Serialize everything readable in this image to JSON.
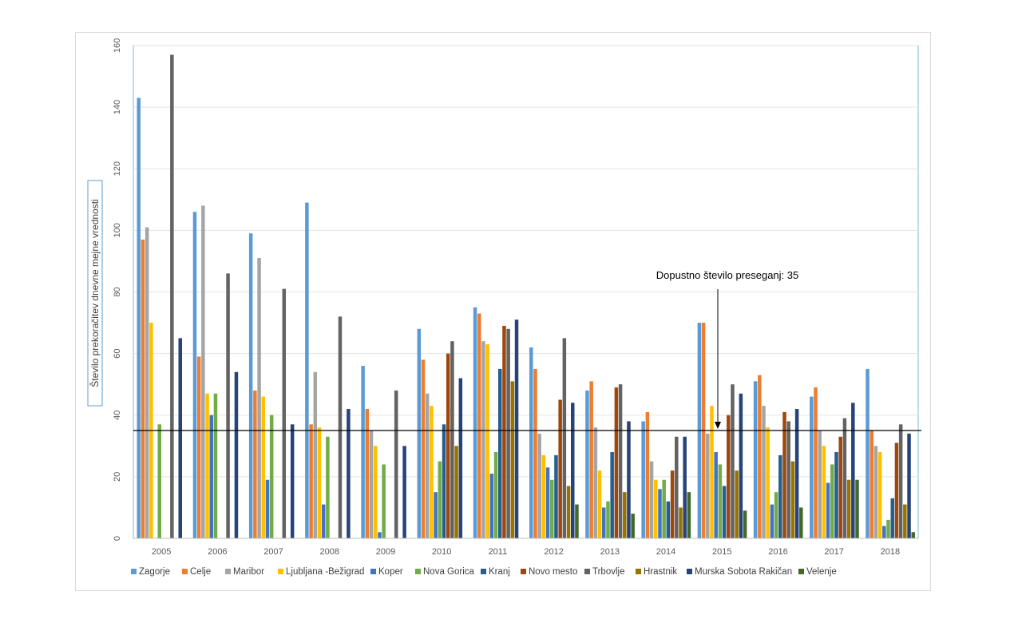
{
  "chart_data": {
    "type": "bar",
    "title": "",
    "xlabel": "",
    "ylabel": "Število prekoračitev dnevne mejne vrednosti",
    "ylim": [
      0,
      160
    ],
    "yticks": [
      0,
      20,
      40,
      60,
      80,
      100,
      120,
      140,
      160
    ],
    "grid": true,
    "legend_position": "bottom",
    "categories": [
      "2005",
      "2006",
      "2007",
      "2008",
      "2009",
      "2010",
      "2011",
      "2012",
      "2013",
      "2014",
      "2015",
      "2016",
      "2017",
      "2018"
    ],
    "reference_line": {
      "value": 35,
      "label": "Dopustno število preseganj: 35"
    },
    "series": [
      {
        "name": "Zagorje",
        "color": "#5b9bd5",
        "values": [
          143,
          106,
          99,
          109,
          56,
          68,
          75,
          62,
          48,
          38,
          70,
          51,
          46,
          55
        ]
      },
      {
        "name": "Celje",
        "color": "#ed7d31",
        "values": [
          97,
          59,
          48,
          37,
          42,
          58,
          73,
          55,
          51,
          41,
          70,
          53,
          49,
          35
        ]
      },
      {
        "name": "Maribor",
        "color": "#a5a5a5",
        "values": [
          101,
          108,
          91,
          54,
          35,
          47,
          64,
          34,
          36,
          25,
          34,
          43,
          35,
          30
        ]
      },
      {
        "name": "Ljubljana -Bežigrad",
        "color": "#ffc000",
        "values": [
          70,
          47,
          46,
          36,
          30,
          43,
          63,
          27,
          22,
          19,
          43,
          36,
          30,
          28
        ]
      },
      {
        "name": "Koper",
        "color": "#4472c4",
        "values": [
          null,
          40,
          19,
          11,
          2,
          15,
          21,
          23,
          10,
          16,
          28,
          11,
          18,
          4
        ]
      },
      {
        "name": "Nova Gorica",
        "color": "#70ad47",
        "values": [
          37,
          47,
          40,
          33,
          24,
          25,
          28,
          19,
          12,
          19,
          24,
          15,
          24,
          6
        ]
      },
      {
        "name": "Kranj",
        "color": "#255e91",
        "values": [
          null,
          null,
          null,
          null,
          null,
          37,
          55,
          27,
          28,
          12,
          17,
          27,
          28,
          13
        ]
      },
      {
        "name": "Novo mesto",
        "color": "#9e480e",
        "values": [
          null,
          null,
          null,
          null,
          null,
          60,
          69,
          45,
          49,
          22,
          40,
          41,
          33,
          31
        ]
      },
      {
        "name": "Trbovlje",
        "color": "#636363",
        "values": [
          157,
          86,
          81,
          72,
          48,
          64,
          68,
          65,
          50,
          33,
          50,
          38,
          39,
          37
        ]
      },
      {
        "name": "Hrastnik",
        "color": "#997300",
        "values": [
          null,
          null,
          null,
          null,
          null,
          30,
          51,
          17,
          15,
          10,
          22,
          25,
          19,
          11
        ]
      },
      {
        "name": "Murska Sobota Rakičan",
        "color": "#264478",
        "values": [
          65,
          54,
          37,
          42,
          30,
          52,
          71,
          44,
          38,
          33,
          47,
          42,
          44,
          34
        ]
      },
      {
        "name": "Velenje",
        "color": "#43682b",
        "values": [
          null,
          null,
          null,
          null,
          null,
          null,
          null,
          11,
          8,
          15,
          9,
          10,
          19,
          2
        ]
      }
    ]
  }
}
